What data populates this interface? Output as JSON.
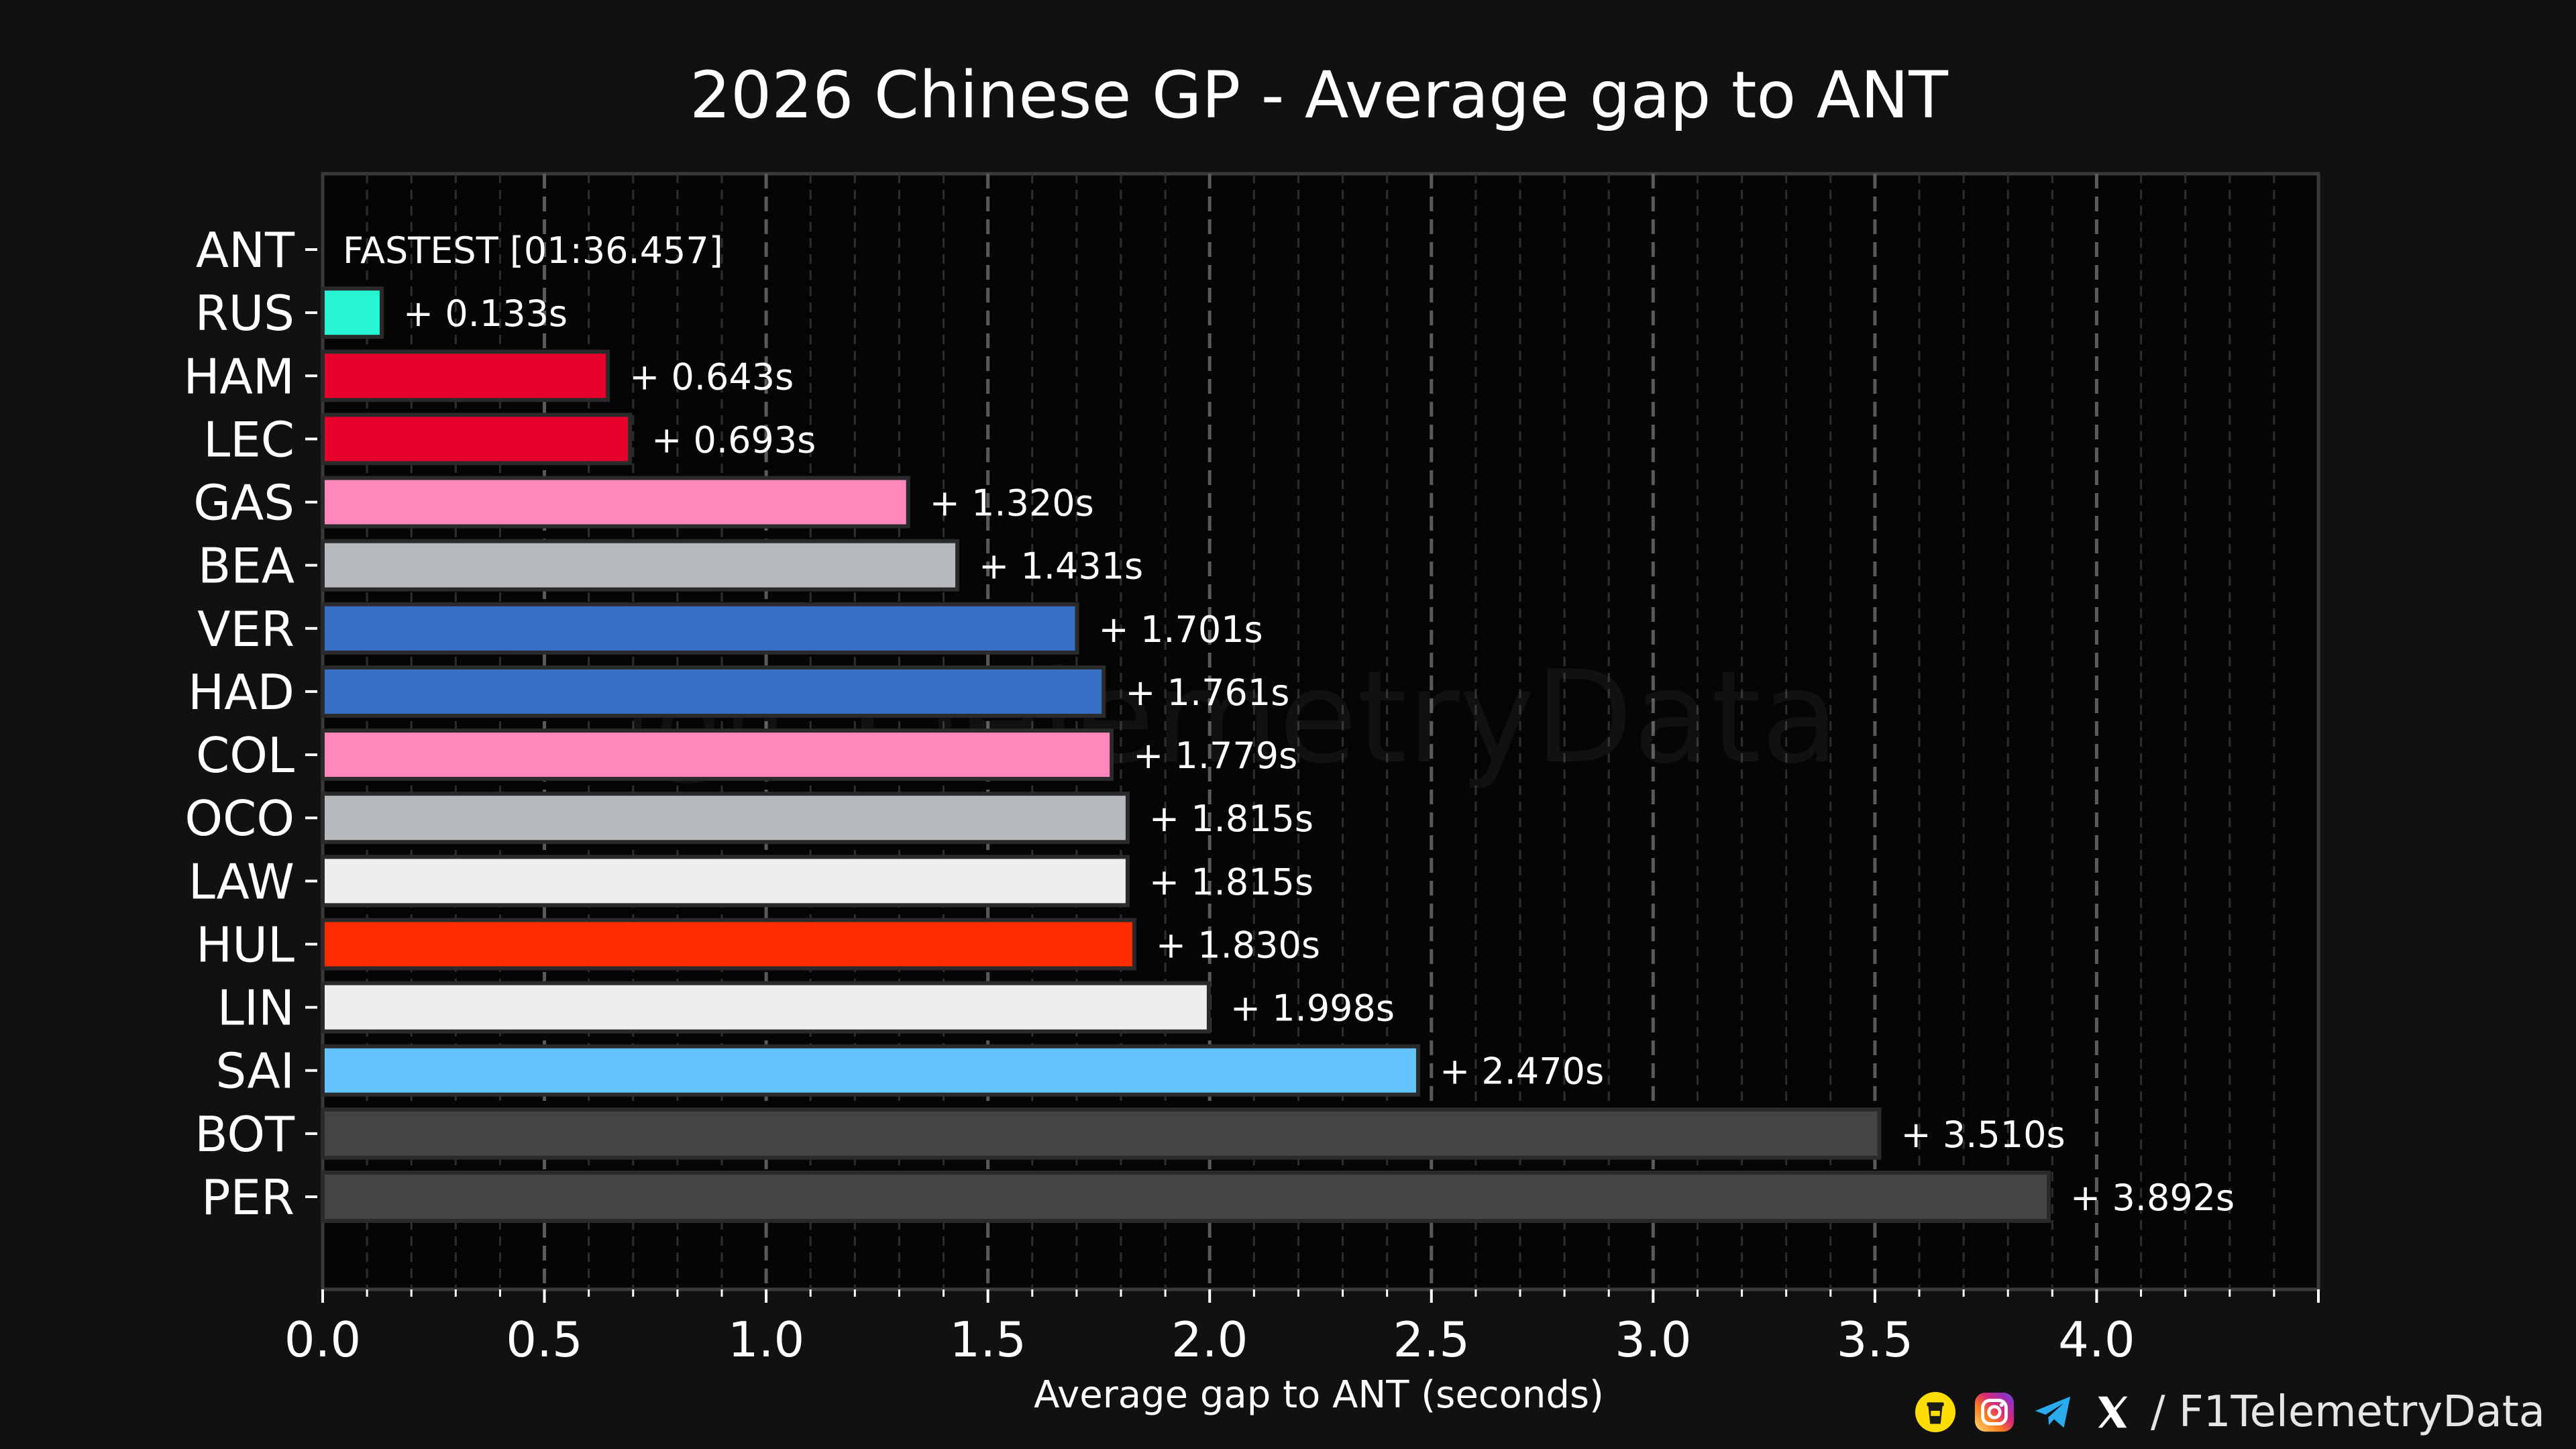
{
  "chart_data": {
    "type": "bar",
    "orientation": "horizontal",
    "title": "2026 Chinese GP - Average gap to ANT",
    "xlabel": "Average gap to ANT (seconds)",
    "ylabel": "",
    "xlim": [
      0.0,
      4.5
    ],
    "xticks": [
      "0.0",
      "0.5",
      "1.0",
      "1.5",
      "2.0",
      "2.5",
      "3.0",
      "3.5",
      "4.0"
    ],
    "categories": [
      "ANT",
      "RUS",
      "HAM",
      "LEC",
      "GAS",
      "BEA",
      "VER",
      "HAD",
      "COL",
      "OCO",
      "LAW",
      "HUL",
      "LIN",
      "SAI",
      "BOT",
      "PER"
    ],
    "values": [
      0.0,
      0.133,
      0.643,
      0.693,
      1.32,
      1.431,
      1.701,
      1.761,
      1.779,
      1.815,
      1.815,
      1.83,
      1.998,
      2.47,
      3.51,
      3.892
    ],
    "labels": [
      "FASTEST [01:36.457]",
      "+ 0.133s",
      "+ 0.643s",
      "+ 0.693s",
      "+ 1.320s",
      "+ 1.431s",
      "+ 1.701s",
      "+ 1.761s",
      "+ 1.779s",
      "+ 1.815s",
      "+ 1.815s",
      "+ 1.830s",
      "+ 1.998s",
      "+ 2.470s",
      "+ 3.510s",
      "+ 3.892s"
    ],
    "colors": [
      "#27F4D2",
      "#27F4D2",
      "#E8002D",
      "#E8002D",
      "#FF87BC",
      "#B6BABD",
      "#3671C6",
      "#3671C6",
      "#FF87BC",
      "#B6BABD",
      "#EEEEEE",
      "#FF2D00",
      "#EEEEEE",
      "#64C4FF",
      "#444444",
      "#444444"
    ],
    "grid": true
  },
  "watermark": "@F1TelemetryData",
  "footer": {
    "handle": "/ F1TelemetryData",
    "icons": [
      "buymeacoffee-icon",
      "instagram-icon",
      "telegram-icon",
      "x-icon"
    ]
  }
}
